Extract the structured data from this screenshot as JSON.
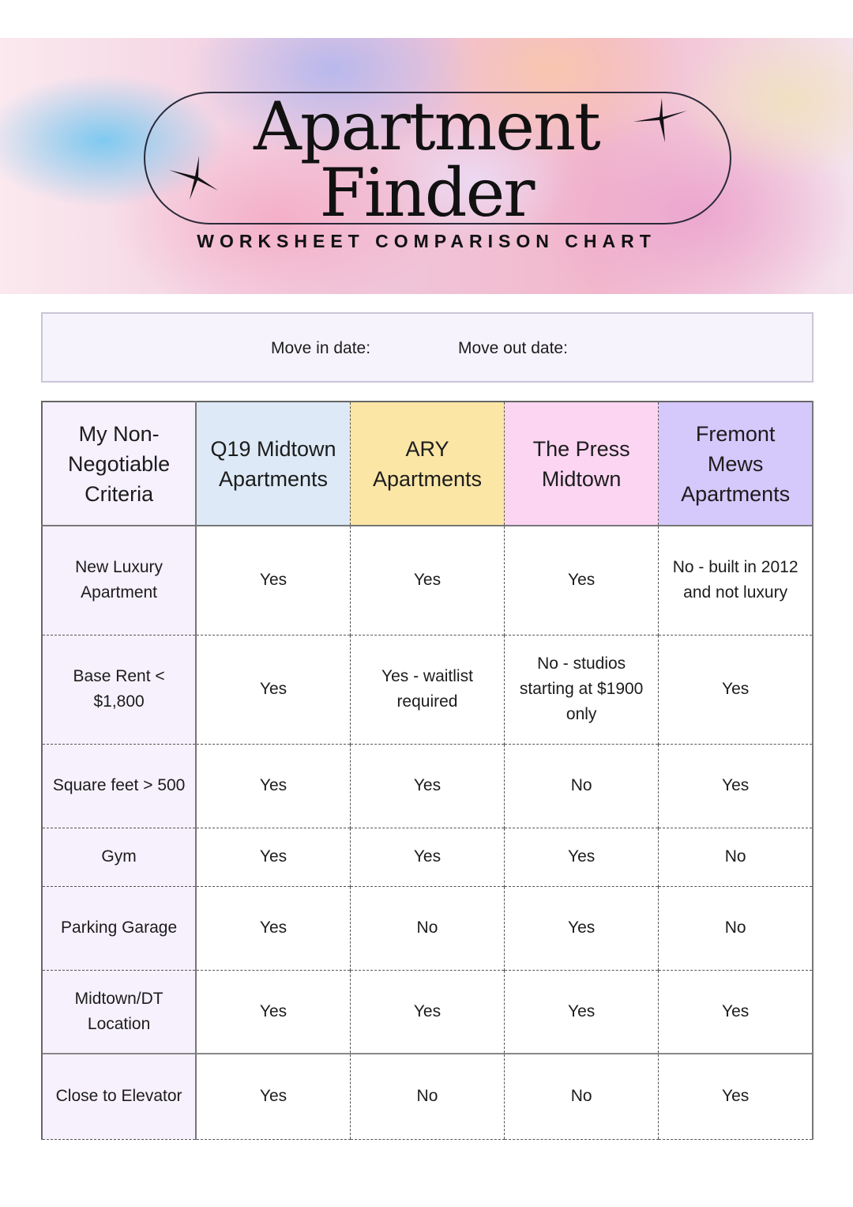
{
  "header": {
    "title_line1": "Apartment",
    "title_line2": "Finder",
    "subtitle": "WORKSHEET COMPARISON CHART",
    "icons": [
      "sparkle-star-icon",
      "sparkle-star-icon"
    ]
  },
  "dates": {
    "move_in_label": "Move in date:",
    "move_out_label": "Move out date:"
  },
  "table": {
    "columns": [
      {
        "label": "My Non-Negotiable Criteria",
        "color": "#f6f1fd"
      },
      {
        "label": "Q19 Midtown Apartments",
        "color": "#dde9f6"
      },
      {
        "label": "ARY Apartments",
        "color": "#fbe6a6"
      },
      {
        "label": "The Press Midtown",
        "color": "#fcd5f2"
      },
      {
        "label": "Fremont Mews Apartments",
        "color": "#d5c8fb"
      }
    ],
    "rows": [
      {
        "criteria": "New Luxury Apartment",
        "values": [
          "Yes",
          "Yes",
          "Yes",
          "No - built in 2012 and not luxury"
        ]
      },
      {
        "criteria": "Base Rent < $1,800",
        "values": [
          "Yes",
          "Yes - waitlist required",
          "No - studios starting at $1900 only",
          "Yes"
        ]
      },
      {
        "criteria": "Square feet > 500",
        "values": [
          "Yes",
          "Yes",
          "No",
          "Yes"
        ]
      },
      {
        "criteria": "Gym",
        "values": [
          "Yes",
          "Yes",
          "Yes",
          "No"
        ]
      },
      {
        "criteria": "Parking Garage",
        "values": [
          "Yes",
          "No",
          "Yes",
          "No"
        ]
      },
      {
        "criteria": "Midtown/DT Location",
        "values": [
          "Yes",
          "Yes",
          "Yes",
          "Yes"
        ]
      },
      {
        "criteria": "Close to Elevator",
        "values": [
          "Yes",
          "No",
          "No",
          "Yes"
        ]
      }
    ]
  }
}
